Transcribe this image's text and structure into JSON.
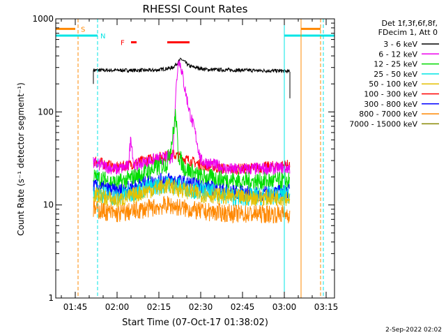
{
  "chart_data": {
    "type": "line",
    "title": "RHESSI Count Rates",
    "xlabel": "Start Time (07-Oct-17 01:38:02)",
    "ylabel": "Count Rate (s⁻¹ detector segment⁻¹)",
    "y_scale": "log",
    "ylim": [
      1,
      1000
    ],
    "y_ticks": [
      {
        "value": 1,
        "label": "1"
      },
      {
        "value": 10,
        "label": "10"
      },
      {
        "value": 100,
        "label": "100"
      },
      {
        "value": 1000,
        "label": "1000"
      }
    ],
    "xlim": [
      "01:38",
      "03:18"
    ],
    "x_ticks": [
      "01:45",
      "02:00",
      "02:15",
      "02:30",
      "02:45",
      "03:00",
      "03:15"
    ],
    "legend": {
      "placement": "right",
      "header": [
        "Det 1f,3f,6f,8f,",
        "FDecim 1, Att 0"
      ],
      "entries": [
        {
          "label": "3 - 6 keV",
          "color": "#000000"
        },
        {
          "label": "6 - 12 keV",
          "color": "#ee00ee"
        },
        {
          "label": "12 - 25 keV",
          "color": "#00dd00"
        },
        {
          "label": "25 - 50 keV",
          "color": "#00e5e5"
        },
        {
          "label": "50 - 100 keV",
          "color": "#e5c000"
        },
        {
          "label": "100 - 300 keV",
          "color": "#ff0000"
        },
        {
          "label": "300 - 800 keV",
          "color": "#0000ff"
        },
        {
          "label": "800 - 7000 keV",
          "color": "#ff8800"
        },
        {
          "label": "7000 - 15000 keV",
          "color": "#888800"
        }
      ]
    },
    "series": [
      {
        "name": "3 - 6 keV",
        "color": "#000000",
        "noise": 0.02,
        "points": [
          [
            "01:51:30",
            280
          ],
          [
            "02:14",
            280
          ],
          [
            "02:20",
            300
          ],
          [
            "02:23",
            370
          ],
          [
            "02:26",
            310
          ],
          [
            "02:32",
            285
          ],
          [
            "03:00",
            275
          ],
          [
            "03:02",
            270
          ]
        ]
      },
      {
        "name": "100 - 300 keV",
        "color": "#ff0000",
        "noise": 0.06,
        "points": [
          [
            "01:51:30",
            30
          ],
          [
            "02:00",
            25
          ],
          [
            "02:10",
            30
          ],
          [
            "02:20",
            35
          ],
          [
            "02:30",
            27
          ],
          [
            "02:40",
            24
          ],
          [
            "02:50",
            25
          ],
          [
            "03:02",
            27
          ]
        ]
      },
      {
        "name": "6 - 12 keV",
        "color": "#ee00ee",
        "noise": 0.07,
        "points": [
          [
            "01:51:30",
            28
          ],
          [
            "02:00",
            24
          ],
          [
            "02:04",
            26
          ],
          [
            "02:05",
            55
          ],
          [
            "02:06",
            26
          ],
          [
            "02:12",
            30
          ],
          [
            "02:20",
            33
          ],
          [
            "02:21",
            150
          ],
          [
            "02:22",
            380
          ],
          [
            "02:23",
            300
          ],
          [
            "02:24",
            200
          ],
          [
            "02:26",
            100
          ],
          [
            "02:28",
            60
          ],
          [
            "02:30",
            30
          ],
          [
            "02:40",
            24
          ],
          [
            "03:02",
            25
          ]
        ]
      },
      {
        "name": "12 - 25 keV",
        "color": "#00dd00",
        "noise": 0.1,
        "points": [
          [
            "01:51:30",
            20
          ],
          [
            "02:00",
            17
          ],
          [
            "02:10",
            22
          ],
          [
            "02:18",
            28
          ],
          [
            "02:20",
            55
          ],
          [
            "02:21",
            95
          ],
          [
            "02:22",
            35
          ],
          [
            "02:24",
            25
          ],
          [
            "02:30",
            20
          ],
          [
            "02:45",
            18
          ],
          [
            "03:02",
            18
          ]
        ]
      },
      {
        "name": "300 - 800 keV",
        "color": "#0000ff",
        "noise": 0.08,
        "points": [
          [
            "01:51:30",
            16
          ],
          [
            "02:00",
            14
          ],
          [
            "02:10",
            17
          ],
          [
            "02:18",
            19
          ],
          [
            "02:30",
            16
          ],
          [
            "02:40",
            14
          ],
          [
            "02:50",
            13
          ],
          [
            "03:02",
            14
          ]
        ]
      },
      {
        "name": "25 - 50 keV",
        "color": "#00e5e5",
        "noise": 0.1,
        "points": [
          [
            "01:51:30",
            14
          ],
          [
            "02:00",
            12
          ],
          [
            "02:10",
            15
          ],
          [
            "02:18",
            17
          ],
          [
            "02:30",
            14
          ],
          [
            "02:45",
            12
          ],
          [
            "03:02",
            13
          ]
        ]
      },
      {
        "name": "50 - 100 keV",
        "color": "#e5c000",
        "noise": 0.09,
        "points": [
          [
            "01:51:30",
            13
          ],
          [
            "02:00",
            11
          ],
          [
            "02:10",
            14
          ],
          [
            "02:18",
            16
          ],
          [
            "02:30",
            13
          ],
          [
            "02:45",
            12
          ],
          [
            "03:02",
            12
          ]
        ]
      },
      {
        "name": "800 - 7000 keV",
        "color": "#ff8800",
        "noise": 0.1,
        "points": [
          [
            "01:51:30",
            9
          ],
          [
            "02:00",
            8
          ],
          [
            "02:10",
            9
          ],
          [
            "02:18",
            10
          ],
          [
            "02:30",
            8.5
          ],
          [
            "02:45",
            8
          ],
          [
            "03:02",
            8
          ]
        ]
      }
    ],
    "annotations": [
      {
        "label": "S",
        "color": "#ff8800",
        "markers": [
          "01:46"
        ],
        "bar": [
          "01:38",
          "01:45"
        ],
        "bar_value": 780
      },
      {
        "label": "N",
        "color": "#00e5e5",
        "markers": [
          "01:53"
        ],
        "bar": [
          "01:38",
          "01:53"
        ],
        "bar_value": 660
      },
      {
        "label": "F",
        "color": "#ff0000",
        "bars": [
          [
            "02:05",
            "02:07"
          ],
          [
            "02:18",
            "02:26"
          ]
        ],
        "bar_value": 560
      }
    ],
    "right_markers": [
      {
        "color": "#00e5e5",
        "time": "03:00",
        "bar": [
          "03:00",
          "03:18"
        ],
        "bar_value": 660
      },
      {
        "color": "#ff8800",
        "time": "03:06",
        "bar": [
          "03:06",
          "03:13"
        ],
        "bar_value": 780
      },
      {
        "color": "#ff8800",
        "time": "03:13",
        "dashed": true
      },
      {
        "color": "#00e5e5",
        "time": "03:14",
        "dashed": true
      }
    ]
  },
  "footer": {
    "stamp": "2-Sep-2022 02:02"
  }
}
